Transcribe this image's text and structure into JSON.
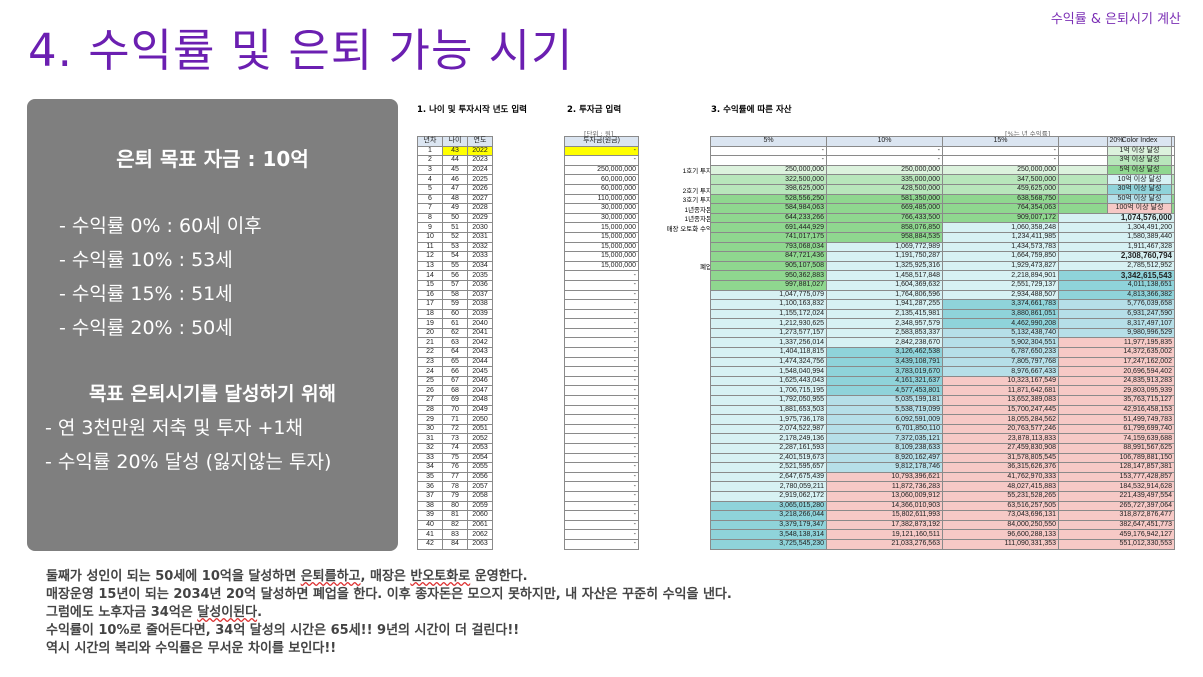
{
  "slide": {
    "tag": "수익률 & 은퇴시기 계산",
    "title": "4. 수익률 및 은퇴 가능 시기"
  },
  "panel": {
    "goal": "은퇴 목표 자금 : 10억",
    "rates": [
      "- 수익률    0% : 60세 이후",
      "- 수익률 10% : 53세",
      "- 수익률 15% : 51세",
      "- 수익률 20% : 50세"
    ],
    "subhead": "목표 은퇴시기를 달성하기 위해",
    "actions": [
      "- 연 3천만원 저축 및 투자 +1채",
      "- 수익률 20% 달성 (잃지않는 투자)"
    ]
  },
  "sheet": {
    "sec1": "1. 나이 및 투자시작 년도 입력",
    "sec2": "2. 투자금 입력",
    "sec3": "3. 수익률에 따른 자산",
    "unit_note": "[단위 : 원]",
    "rate_note": "[%는 년 수익률]",
    "age_headers": [
      "년차",
      "나이",
      "연도"
    ],
    "invest_header": "투자금(원금)",
    "rate_headers": [
      "5%",
      "10%",
      "15%",
      "20%"
    ],
    "legend_title": "Color Index",
    "legend_items": [
      "1억 이상 달성",
      "3억 이상 달성",
      "5억 이상 달성",
      "10억 이상 달성",
      "30억 이상 달성",
      "50억 이상 달성",
      "100억 이상 달성"
    ],
    "legend_colors": [
      "#dcf2dd",
      "#b8e6bb",
      "#8fd78f",
      "#d7f1f3",
      "#8fd3da",
      "#b6dfe8",
      "#f6c9c6"
    ],
    "notes": [
      {
        "row": 3,
        "text": "1호기 투자"
      },
      {
        "row": 5,
        "text": "2호기 투자"
      },
      {
        "row": 6,
        "text": "3호기 투자"
      },
      {
        "row": 7,
        "text": "1년종자돈"
      },
      {
        "row": 8,
        "text": "1년종자돈"
      },
      {
        "row": 9,
        "text": "매장 오토화 수익"
      },
      {
        "row": 13,
        "text": "폐업"
      }
    ],
    "rows": [
      {
        "n": "1",
        "age": "43",
        "year": "2022",
        "inv": "-",
        "v": [
          "-",
          "-",
          "-",
          "-"
        ],
        "c": [
          0,
          0,
          0,
          0
        ]
      },
      {
        "n": "2",
        "age": "44",
        "year": "2023",
        "inv": "-",
        "v": [
          "-",
          "-",
          "-",
          "-"
        ],
        "c": [
          0,
          0,
          0,
          0
        ]
      },
      {
        "n": "3",
        "age": "45",
        "year": "2024",
        "inv": "250,000,000",
        "v": [
          "250,000,000",
          "250,000,000",
          "250,000,000",
          "250,000,000"
        ],
        "c": [
          1,
          1,
          1,
          1
        ]
      },
      {
        "n": "4",
        "age": "46",
        "year": "2025",
        "inv": "60,000,000",
        "v": [
          "322,500,000",
          "335,000,000",
          "347,500,000",
          "360,000,000"
        ],
        "c": [
          2,
          2,
          2,
          2
        ]
      },
      {
        "n": "5",
        "age": "47",
        "year": "2026",
        "inv": "60,000,000",
        "v": [
          "398,625,000",
          "428,500,000",
          "459,625,000",
          "492,000,000"
        ],
        "c": [
          2,
          2,
          2,
          2
        ]
      },
      {
        "n": "6",
        "age": "48",
        "year": "2027",
        "inv": "110,000,000",
        "v": [
          "528,556,250",
          "581,350,000",
          "638,568,750",
          "700,400,000"
        ],
        "c": [
          3,
          3,
          3,
          3
        ]
      },
      {
        "n": "7",
        "age": "49",
        "year": "2028",
        "inv": "30,000,000",
        "v": [
          "584,984,063",
          "669,485,000",
          "764,354,063",
          "870,480,000"
        ],
        "c": [
          3,
          3,
          3,
          3
        ]
      },
      {
        "n": "8",
        "age": "50",
        "year": "2029",
        "inv": "30,000,000",
        "v": [
          "644,233,266",
          "766,433,500",
          "909,007,172",
          "1,074,576,000"
        ],
        "c": [
          3,
          3,
          3,
          4
        ]
      },
      {
        "n": "9",
        "age": "51",
        "year": "2030",
        "inv": "15,000,000",
        "v": [
          "691,444,929",
          "858,076,850",
          "1,060,358,248",
          "1,304,491,200"
        ],
        "c": [
          3,
          3,
          4,
          4
        ]
      },
      {
        "n": "10",
        "age": "52",
        "year": "2031",
        "inv": "15,000,000",
        "v": [
          "741,017,175",
          "958,884,535",
          "1,234,411,985",
          "1,580,389,440"
        ],
        "c": [
          3,
          3,
          4,
          4
        ]
      },
      {
        "n": "11",
        "age": "53",
        "year": "2032",
        "inv": "15,000,000",
        "v": [
          "793,068,034",
          "1,069,772,989",
          "1,434,573,783",
          "1,911,467,328"
        ],
        "c": [
          3,
          4,
          4,
          4
        ]
      },
      {
        "n": "12",
        "age": "54",
        "year": "2033",
        "inv": "15,000,000",
        "v": [
          "847,721,436",
          "1,191,750,287",
          "1,664,759,850",
          "2,308,760,794"
        ],
        "c": [
          3,
          4,
          4,
          4
        ]
      },
      {
        "n": "13",
        "age": "55",
        "year": "2034",
        "inv": "15,000,000",
        "v": [
          "905,107,508",
          "1,325,925,316",
          "1,929,473,827",
          "2,785,512,952"
        ],
        "c": [
          3,
          4,
          4,
          4
        ]
      },
      {
        "n": "14",
        "age": "56",
        "year": "2035",
        "inv": "-",
        "v": [
          "950,362,883",
          "1,458,517,848",
          "2,218,894,901",
          "3,342,615,543"
        ],
        "c": [
          3,
          4,
          4,
          5
        ]
      },
      {
        "n": "15",
        "age": "57",
        "year": "2036",
        "inv": "-",
        "v": [
          "997,881,027",
          "1,604,369,632",
          "2,551,729,137",
          "4,011,138,651"
        ],
        "c": [
          3,
          4,
          4,
          5
        ]
      },
      {
        "n": "16",
        "age": "58",
        "year": "2037",
        "inv": "-",
        "v": [
          "1,047,775,079",
          "1,764,806,596",
          "2,934,488,507",
          "4,813,366,382"
        ],
        "c": [
          4,
          4,
          4,
          5
        ]
      },
      {
        "n": "17",
        "age": "59",
        "year": "2038",
        "inv": "-",
        "v": [
          "1,100,163,832",
          "1,941,287,255",
          "3,374,661,783",
          "5,776,039,658"
        ],
        "c": [
          4,
          4,
          5,
          6
        ]
      },
      {
        "n": "18",
        "age": "60",
        "year": "2039",
        "inv": "-",
        "v": [
          "1,155,172,024",
          "2,135,415,981",
          "3,880,861,051",
          "6,931,247,590"
        ],
        "c": [
          4,
          4,
          5,
          6
        ]
      },
      {
        "n": "19",
        "age": "61",
        "year": "2040",
        "inv": "-",
        "v": [
          "1,212,930,625",
          "2,348,957,579",
          "4,462,990,208",
          "8,317,497,107"
        ],
        "c": [
          4,
          4,
          5,
          6
        ]
      },
      {
        "n": "20",
        "age": "62",
        "year": "2041",
        "inv": "-",
        "v": [
          "1,273,577,157",
          "2,583,853,337",
          "5,132,438,740",
          "9,980,996,529"
        ],
        "c": [
          4,
          4,
          6,
          6
        ]
      },
      {
        "n": "21",
        "age": "63",
        "year": "2042",
        "inv": "-",
        "v": [
          "1,337,256,014",
          "2,842,238,670",
          "5,902,304,551",
          "11,977,195,835"
        ],
        "c": [
          4,
          4,
          6,
          7
        ]
      },
      {
        "n": "22",
        "age": "64",
        "year": "2043",
        "inv": "-",
        "v": [
          "1,404,118,815",
          "3,126,462,538",
          "6,787,650,233",
          "14,372,635,002"
        ],
        "c": [
          4,
          5,
          6,
          7
        ]
      },
      {
        "n": "23",
        "age": "65",
        "year": "2044",
        "inv": "-",
        "v": [
          "1,474,324,756",
          "3,439,108,791",
          "7,805,797,768",
          "17,247,162,002"
        ],
        "c": [
          4,
          5,
          6,
          7
        ]
      },
      {
        "n": "24",
        "age": "66",
        "year": "2045",
        "inv": "-",
        "v": [
          "1,548,040,994",
          "3,783,019,670",
          "8,976,667,433",
          "20,696,594,402"
        ],
        "c": [
          4,
          5,
          6,
          7
        ]
      },
      {
        "n": "25",
        "age": "67",
        "year": "2046",
        "inv": "-",
        "v": [
          "1,625,443,043",
          "4,161,321,637",
          "10,323,167,549",
          "24,835,913,283"
        ],
        "c": [
          4,
          5,
          7,
          7
        ]
      },
      {
        "n": "26",
        "age": "68",
        "year": "2047",
        "inv": "-",
        "v": [
          "1,706,715,195",
          "4,577,453,801",
          "11,871,642,681",
          "29,803,095,939"
        ],
        "c": [
          4,
          5,
          7,
          7
        ]
      },
      {
        "n": "27",
        "age": "69",
        "year": "2048",
        "inv": "-",
        "v": [
          "1,792,050,955",
          "5,035,199,181",
          "13,652,389,083",
          "35,763,715,127"
        ],
        "c": [
          4,
          6,
          7,
          7
        ]
      },
      {
        "n": "28",
        "age": "70",
        "year": "2049",
        "inv": "-",
        "v": [
          "1,881,653,503",
          "5,538,719,099",
          "15,700,247,445",
          "42,916,458,153"
        ],
        "c": [
          4,
          6,
          7,
          7
        ]
      },
      {
        "n": "29",
        "age": "71",
        "year": "2050",
        "inv": "-",
        "v": [
          "1,975,736,178",
          "6,092,591,009",
          "18,055,284,562",
          "51,499,749,783"
        ],
        "c": [
          4,
          6,
          7,
          7
        ]
      },
      {
        "n": "30",
        "age": "72",
        "year": "2051",
        "inv": "-",
        "v": [
          "2,074,522,987",
          "6,701,850,110",
          "20,763,577,246",
          "61,799,699,740"
        ],
        "c": [
          4,
          6,
          7,
          7
        ]
      },
      {
        "n": "31",
        "age": "73",
        "year": "2052",
        "inv": "-",
        "v": [
          "2,178,249,136",
          "7,372,035,121",
          "23,878,113,833",
          "74,159,639,688"
        ],
        "c": [
          4,
          6,
          7,
          7
        ]
      },
      {
        "n": "32",
        "age": "74",
        "year": "2053",
        "inv": "-",
        "v": [
          "2,287,161,593",
          "8,109,238,633",
          "27,459,830,908",
          "88,991,567,625"
        ],
        "c": [
          4,
          6,
          7,
          7
        ]
      },
      {
        "n": "33",
        "age": "75",
        "year": "2054",
        "inv": "-",
        "v": [
          "2,401,519,673",
          "8,920,162,497",
          "31,578,805,545",
          "106,789,881,150"
        ],
        "c": [
          4,
          6,
          7,
          7
        ]
      },
      {
        "n": "34",
        "age": "76",
        "year": "2055",
        "inv": "-",
        "v": [
          "2,521,595,657",
          "9,812,178,746",
          "36,315,626,376",
          "128,147,857,381"
        ],
        "c": [
          4,
          6,
          7,
          7
        ]
      },
      {
        "n": "35",
        "age": "77",
        "year": "2056",
        "inv": "-",
        "v": [
          "2,647,675,439",
          "10,793,396,621",
          "41,762,970,333",
          "153,777,428,857"
        ],
        "c": [
          4,
          7,
          7,
          7
        ]
      },
      {
        "n": "36",
        "age": "78",
        "year": "2057",
        "inv": "-",
        "v": [
          "2,780,059,211",
          "11,872,736,283",
          "48,027,415,883",
          "184,532,914,628"
        ],
        "c": [
          4,
          7,
          7,
          7
        ]
      },
      {
        "n": "37",
        "age": "79",
        "year": "2058",
        "inv": "-",
        "v": [
          "2,919,062,172",
          "13,060,009,912",
          "55,231,528,265",
          "221,439,497,554"
        ],
        "c": [
          4,
          7,
          7,
          7
        ]
      },
      {
        "n": "38",
        "age": "80",
        "year": "2059",
        "inv": "-",
        "v": [
          "3,065,015,280",
          "14,366,010,903",
          "63,516,257,505",
          "265,727,397,064"
        ],
        "c": [
          5,
          7,
          7,
          7
        ]
      },
      {
        "n": "39",
        "age": "81",
        "year": "2060",
        "inv": "-",
        "v": [
          "3,218,266,044",
          "15,802,611,993",
          "73,043,696,131",
          "318,872,876,477"
        ],
        "c": [
          5,
          7,
          7,
          7
        ]
      },
      {
        "n": "40",
        "age": "82",
        "year": "2061",
        "inv": "-",
        "v": [
          "3,379,179,347",
          "17,382,873,192",
          "84,000,250,550",
          "382,647,451,773"
        ],
        "c": [
          5,
          7,
          7,
          7
        ]
      },
      {
        "n": "41",
        "age": "83",
        "year": "2062",
        "inv": "-",
        "v": [
          "3,548,138,314",
          "19,121,160,511",
          "96,600,288,133",
          "459,176,942,127"
        ],
        "c": [
          5,
          7,
          7,
          7
        ]
      },
      {
        "n": "42",
        "age": "84",
        "year": "2063",
        "inv": "-",
        "v": [
          "3,725,545,230",
          "21,033,276,563",
          "111,090,331,353",
          "551,012,330,553"
        ],
        "c": [
          5,
          7,
          7,
          7
        ]
      }
    ]
  },
  "summary": {
    "l1a": "둘째가 성인이 되는 50세에 10억을 달성하면 ",
    "l1b": "은퇴를하고",
    "l1c": ", 매장은 ",
    "l1d": "반오토화로",
    "l1e": " 운영한다.",
    "l2": "매장운영 15년이 되는 2034년 20억 달성하면 폐업을 한다. 이후 종자돈은 모으지 못하지만, 내 자산은 꾸준히 수익을 낸다.",
    "l3a": "그럼에도 노후자금 34억은 ",
    "l3b": "달성이된다",
    "l3c": ".",
    "l4": "수익률이 10%로 줄어든다면, 34억 달성의 시간은 65세!! 9년의 시간이 더 걸린다!!",
    "l5": "역시 시간의 복리와 수익률은 무서운 차이를 보인다!!"
  }
}
